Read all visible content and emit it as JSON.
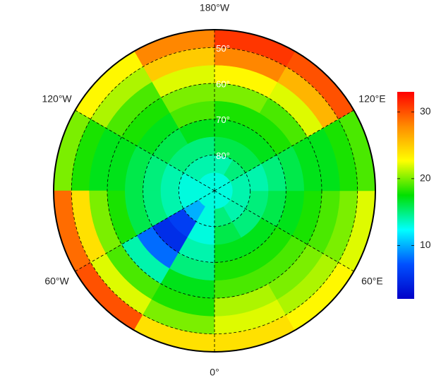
{
  "map": {
    "type": "polar-map",
    "lon_labels": [
      {
        "value": 180,
        "label": "180°W"
      },
      {
        "value": -120,
        "label": "120°W"
      },
      {
        "value": 120,
        "label": "120°E"
      },
      {
        "value": -60,
        "label": "60°W"
      },
      {
        "value": 60,
        "label": "60°E"
      },
      {
        "value": 0,
        "label": "0°"
      }
    ],
    "lat_labels": [
      {
        "value": 50,
        "label": "50°"
      },
      {
        "value": 60,
        "label": "60°"
      },
      {
        "value": 70,
        "label": "70°"
      },
      {
        "value": 80,
        "label": "80°"
      }
    ],
    "lat_bins": [
      45,
      50,
      55,
      60,
      65,
      70,
      75,
      80,
      85,
      90
    ],
    "lon_bins": [
      -180,
      -150,
      -120,
      -90,
      -60,
      -30,
      0,
      30,
      60,
      90,
      120,
      150,
      180
    ],
    "values": [
      [
        28,
        23,
        20,
        29,
        30,
        24,
        24,
        23,
        22,
        19,
        30,
        31
      ],
      [
        25,
        21,
        18,
        24,
        22,
        20,
        22,
        21,
        20,
        18,
        26,
        28
      ],
      [
        22,
        19,
        17,
        20,
        19,
        18,
        21,
        20,
        19,
        17,
        22,
        23
      ],
      [
        20,
        18,
        17,
        18,
        14,
        17,
        19,
        19,
        18,
        17,
        19,
        20
      ],
      [
        19,
        17,
        16,
        16,
        8,
        15,
        18,
        18,
        17,
        16,
        18,
        18
      ],
      [
        17,
        16,
        15,
        15,
        5,
        14,
        17,
        17,
        16,
        15,
        17,
        17
      ],
      [
        15,
        15,
        14,
        14,
        6,
        13,
        16,
        15,
        15,
        14,
        16,
        16
      ],
      [
        14,
        14,
        13,
        13,
        10,
        13,
        15,
        14,
        14,
        14,
        15,
        14
      ],
      [
        13,
        13,
        13,
        13,
        13,
        13,
        13,
        13,
        13,
        13,
        13,
        13
      ]
    ],
    "colormap": [
      "#0000c8",
      "#0050ff",
      "#00ffff",
      "#00e000",
      "#ffff00",
      "#ff8c00",
      "#ff0000"
    ],
    "clim": [
      2,
      33
    ],
    "colorbar_ticks": [
      10,
      20,
      30
    ],
    "meridians": [
      0,
      60,
      120,
      180,
      -60,
      -120
    ]
  }
}
